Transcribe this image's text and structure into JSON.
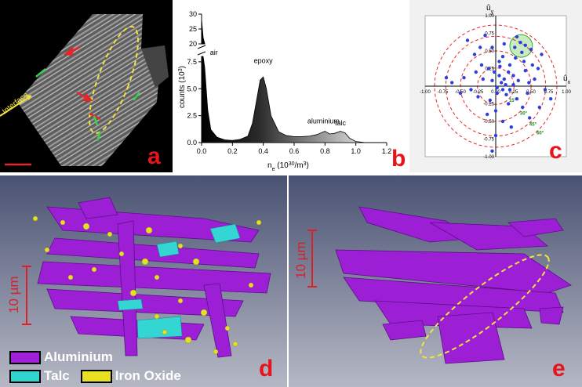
{
  "panels": {
    "a": {
      "label": "a",
      "annotation": "Interface"
    },
    "b": {
      "label": "b",
      "peaks": [
        "air",
        "epoxy",
        "aluminium",
        "talc"
      ]
    },
    "c": {
      "label": "c",
      "axis_x": "û",
      "axis_x_sub": "x",
      "axis_y": "û",
      "axis_y_sub": "y",
      "ring_labels": [
        "15°",
        "30°",
        "45°",
        "60°"
      ]
    },
    "d": {
      "label": "d",
      "scale": "10 µm",
      "legend": [
        {
          "name": "Aluminium",
          "color": "#a020d8"
        },
        {
          "name": "Talc",
          "color": "#30d5d0"
        },
        {
          "name": "Iron Oxide",
          "color": "#e8e020"
        }
      ]
    },
    "e": {
      "label": "e",
      "scale": "10 µm"
    }
  },
  "chart_data": [
    {
      "type": "area",
      "xlabel": "n_e (10^30/m^3)",
      "ylabel": "counts (10^3)",
      "xlim": [
        0.0,
        1.2
      ],
      "ylim": [
        0,
        30
      ],
      "axis_break": [
        8,
        20
      ],
      "x_ticks": [
        "0.0",
        "0.2",
        "0.4",
        "0.6",
        "0.8",
        "1.0",
        "1.2"
      ],
      "y_ticks_lower": [
        "0.0",
        "2.5",
        "5.0",
        "7.5"
      ],
      "y_ticks_upper": [
        "20",
        "25",
        "30"
      ],
      "x": [
        0.0,
        0.01,
        0.02,
        0.04,
        0.06,
        0.1,
        0.15,
        0.2,
        0.25,
        0.3,
        0.33,
        0.36,
        0.38,
        0.4,
        0.42,
        0.45,
        0.5,
        0.55,
        0.6,
        0.65,
        0.7,
        0.75,
        0.78,
        0.8,
        0.83,
        0.86,
        0.9,
        0.93,
        0.96,
        1.0,
        1.05
      ],
      "y": [
        28,
        22,
        7,
        3,
        1.2,
        0.5,
        0.25,
        0.2,
        0.3,
        0.6,
        1.8,
        4.2,
        5.8,
        6.1,
        5.0,
        2.5,
        1.0,
        0.65,
        0.55,
        0.55,
        0.6,
        0.75,
        0.95,
        1.05,
        0.8,
        0.85,
        1.05,
        0.9,
        0.4,
        0.1,
        0.02
      ]
    },
    {
      "type": "scatter",
      "xlim": [
        -1.0,
        1.0
      ],
      "ylim": [
        -1.0,
        1.0
      ],
      "ticks": [
        "-1.00",
        "-0.75",
        "-0.50",
        "-0.25",
        "0.00",
        "0.25",
        "0.50",
        "0.75",
        "1.00"
      ],
      "ring_radii": [
        0.259,
        0.5,
        0.707,
        0.866
      ],
      "highlight_circle": {
        "x": 0.36,
        "y": 0.57,
        "r": 0.16
      },
      "points": [
        [
          0.08,
          0.05
        ],
        [
          0.12,
          0.1
        ],
        [
          0.05,
          0.15
        ],
        [
          0.18,
          0.2
        ],
        [
          0.25,
          0.02
        ],
        [
          0.1,
          -0.05
        ],
        [
          0.02,
          -0.1
        ],
        [
          -0.05,
          0.08
        ],
        [
          0.15,
          -0.12
        ],
        [
          0.2,
          0.3
        ],
        [
          0.28,
          0.4
        ],
        [
          0.35,
          0.62
        ],
        [
          0.42,
          0.58
        ],
        [
          0.3,
          0.7
        ],
        [
          0.5,
          0.52
        ],
        [
          -0.1,
          0.25
        ],
        [
          -0.2,
          0.3
        ],
        [
          -0.3,
          0.45
        ],
        [
          -0.4,
          0.65
        ],
        [
          -0.15,
          0.72
        ],
        [
          0.05,
          0.35
        ],
        [
          0.1,
          0.42
        ],
        [
          -0.08,
          -0.2
        ],
        [
          0.18,
          -0.25
        ],
        [
          0.3,
          -0.18
        ],
        [
          0.45,
          -0.1
        ],
        [
          0.55,
          0.1
        ],
        [
          0.6,
          0.25
        ],
        [
          0.7,
          -0.05
        ],
        [
          0.78,
          -0.18
        ],
        [
          -0.35,
          -0.05
        ],
        [
          -0.5,
          -0.1
        ],
        [
          -0.62,
          0.05
        ],
        [
          -0.7,
          0.12
        ],
        [
          -0.45,
          0.12
        ],
        [
          -0.25,
          -0.15
        ],
        [
          0.0,
          -0.35
        ],
        [
          -0.12,
          -0.4
        ],
        [
          0.1,
          -0.5
        ],
        [
          0.22,
          -0.58
        ],
        [
          0.0,
          -0.7
        ],
        [
          -0.05,
          -0.92
        ],
        [
          0.38,
          -0.3
        ],
        [
          0.48,
          -0.45
        ],
        [
          0.25,
          0.15
        ],
        [
          0.32,
          0.08
        ],
        [
          -0.02,
          0.2
        ],
        [
          0.06,
          0.28
        ],
        [
          0.14,
          0.02
        ],
        [
          0.2,
          -0.05
        ],
        [
          0.42,
          0.22
        ],
        [
          0.47,
          0.05
        ],
        [
          -0.18,
          0.1
        ],
        [
          -0.28,
          0.2
        ],
        [
          -0.22,
          0.55
        ],
        [
          0.4,
          0.35
        ],
        [
          0.52,
          0.3
        ],
        [
          0.65,
          0.45
        ],
        [
          0.62,
          -0.3
        ],
        [
          0.12,
          0.6
        ],
        [
          -0.05,
          0.55
        ],
        [
          0.27,
          0.55
        ],
        [
          0.37,
          0.48
        ],
        [
          0.02,
          -0.02
        ]
      ]
    }
  ]
}
